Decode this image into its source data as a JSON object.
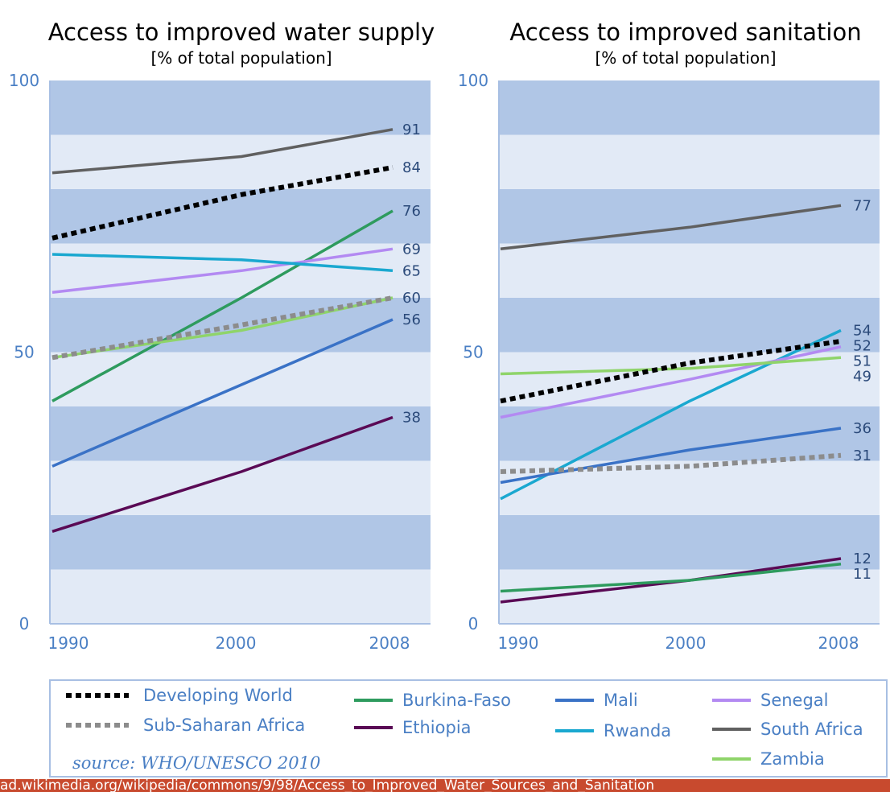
{
  "series_styles": {
    "Developing World": {
      "color": "#000000",
      "dash": "dotted"
    },
    "Sub-Saharan Africa": {
      "color": "#8c8c8c",
      "dash": "dotted"
    },
    "Burkina-Faso": {
      "color": "#2e9b5e",
      "dash": "solid"
    },
    "Ethiopia": {
      "color": "#5a0a55",
      "dash": "solid"
    },
    "Mali": {
      "color": "#3a72c6",
      "dash": "solid"
    },
    "Rwanda": {
      "color": "#1aa8d0",
      "dash": "solid"
    },
    "Senegal": {
      "color": "#b38af2",
      "dash": "solid"
    },
    "South Africa": {
      "color": "#606060",
      "dash": "solid"
    },
    "Zambia": {
      "color": "#8fd46a",
      "dash": "solid"
    }
  },
  "colors": {
    "band_dark": "#b0c6e6",
    "band_light": "#e2eaf6",
    "axis": "#a8bfe3"
  },
  "chart_data": [
    {
      "type": "line",
      "title": "Access to improved water supply",
      "subtitle": "[% of total population]",
      "x": [
        1990,
        2000,
        2008
      ],
      "xticks": [
        "1990",
        "2000",
        "2008"
      ],
      "yticks": [
        "0",
        "50",
        "100"
      ],
      "ylim": [
        0,
        100
      ],
      "series": [
        {
          "name": "South Africa",
          "values": [
            83,
            86,
            91
          ],
          "end_label": "91"
        },
        {
          "name": "Developing World",
          "values": [
            71,
            79,
            84
          ],
          "end_label": "84"
        },
        {
          "name": "Burkina-Faso",
          "values": [
            41,
            60,
            76
          ],
          "end_label": "76"
        },
        {
          "name": "Senegal",
          "values": [
            61,
            65,
            69
          ],
          "end_label": "69"
        },
        {
          "name": "Rwanda",
          "values": [
            68,
            67,
            65
          ],
          "end_label": "65"
        },
        {
          "name": "Sub-Saharan Africa",
          "values": [
            49,
            55,
            60
          ],
          "end_label": "60"
        },
        {
          "name": "Zambia",
          "values": [
            49,
            54,
            60
          ],
          "end_label": ""
        },
        {
          "name": "Mali",
          "values": [
            29,
            44,
            56
          ],
          "end_label": "56"
        },
        {
          "name": "Ethiopia",
          "values": [
            17,
            28,
            38
          ],
          "end_label": "38"
        }
      ]
    },
    {
      "type": "line",
      "title": "Access to improved sanitation",
      "subtitle": "[% of total population]",
      "x": [
        1990,
        2000,
        2008
      ],
      "xticks": [
        "1990",
        "2000",
        "2008"
      ],
      "yticks": [
        "0",
        "50",
        "100"
      ],
      "ylim": [
        0,
        100
      ],
      "series": [
        {
          "name": "South Africa",
          "values": [
            69,
            73,
            77
          ],
          "end_label": "77"
        },
        {
          "name": "Rwanda",
          "values": [
            23,
            41,
            54
          ],
          "end_label": "54"
        },
        {
          "name": "Developing World",
          "values": [
            41,
            48,
            52
          ],
          "end_label": "52"
        },
        {
          "name": "Senegal",
          "values": [
            38,
            45,
            51
          ],
          "end_label": "51"
        },
        {
          "name": "Zambia",
          "values": [
            46,
            47,
            49
          ],
          "end_label": "49"
        },
        {
          "name": "Mali",
          "values": [
            26,
            32,
            36
          ],
          "end_label": "36"
        },
        {
          "name": "Sub-Saharan Africa",
          "values": [
            28,
            29,
            31
          ],
          "end_label": "31"
        },
        {
          "name": "Ethiopia",
          "values": [
            4,
            8,
            12
          ],
          "end_label": "12"
        },
        {
          "name": "Burkina-Faso",
          "values": [
            6,
            8,
            11
          ],
          "end_label": "11"
        }
      ]
    }
  ],
  "legend": [
    {
      "name": "Developing World"
    },
    {
      "name": "Sub-Saharan Africa"
    },
    {
      "name": "Burkina-Faso"
    },
    {
      "name": "Ethiopia"
    },
    {
      "name": "Mali"
    },
    {
      "name": "Rwanda"
    },
    {
      "name": "Senegal"
    },
    {
      "name": "South Africa"
    },
    {
      "name": "Zambia"
    }
  ],
  "source": "source: WHO/UNESCO 2010",
  "url_bar": "ad.wikimedia.org/wikipedia/commons/9/98/Access_to_Improved_Water_Sources_and_Sanitation"
}
